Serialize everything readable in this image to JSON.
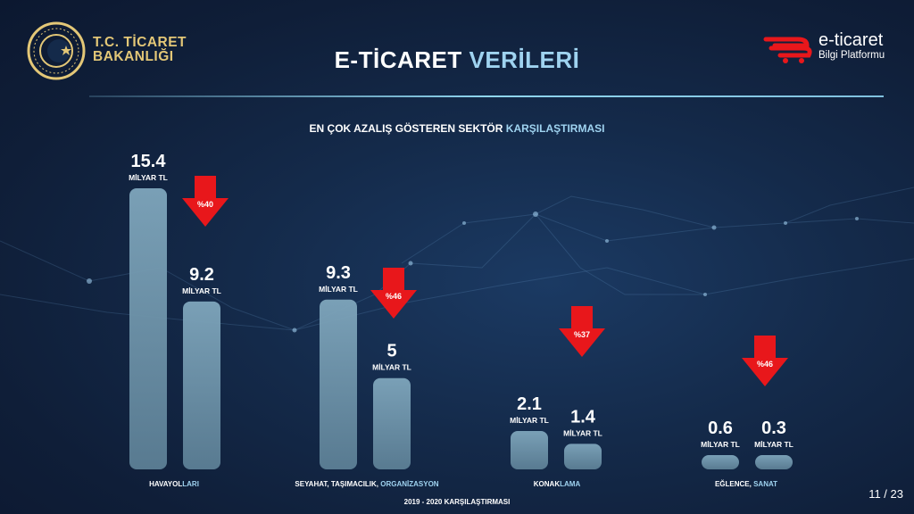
{
  "header": {
    "org_line1": "T.C. TİCARET",
    "org_line2": "BAKANLIĞI",
    "title_part1": "E-TİCARET ",
    "title_part2": "VERİLERİ",
    "brand_name": "e-ticaret",
    "brand_sub": "Bilgi Platformu"
  },
  "subtitle_part1": "EN ÇOK AZALIŞ GÖSTEREN SEKTÖR ",
  "subtitle_part2": "KARŞILAŞTIRMASI",
  "footer": "2019 - 2020 KARŞILAŞTIRMASI",
  "page_number": "11 / 23",
  "colors": {
    "bar_fill_top": "#7fa6bc",
    "bar_fill_bottom": "#5c7f95",
    "arrow": "#e8171b",
    "accent": "#9fd3f0",
    "gold": "#e3c777"
  },
  "chart_data": {
    "type": "bar",
    "unit": "MİLYAR TL",
    "ylim": [
      0,
      15.4
    ],
    "categories": [
      {
        "label_part1": "HAVAYOL",
        "label_part2": "LARI",
        "v2019": 15.4,
        "v2020": 9.2,
        "v2019_text": "15.4",
        "v2020_text": "9.2",
        "change": "%40"
      },
      {
        "label_part1": "SEYAHAT, TAŞIMACILIK, ",
        "label_part2": "ORGANİZASYON",
        "v2019": 9.3,
        "v2020": 5,
        "v2019_text": "9.3",
        "v2020_text": "5",
        "change": "%46"
      },
      {
        "label_part1": "KONAK",
        "label_part2": "LAMA",
        "v2019": 2.1,
        "v2020": 1.4,
        "v2019_text": "2.1",
        "v2020_text": "1.4",
        "change": "%37"
      },
      {
        "label_part1": "EĞLENCE, ",
        "label_part2": "SANAT",
        "v2019": 0.6,
        "v2020": 0.3,
        "v2019_text": "0.6",
        "v2020_text": "0.3",
        "change": "%46"
      }
    ]
  }
}
